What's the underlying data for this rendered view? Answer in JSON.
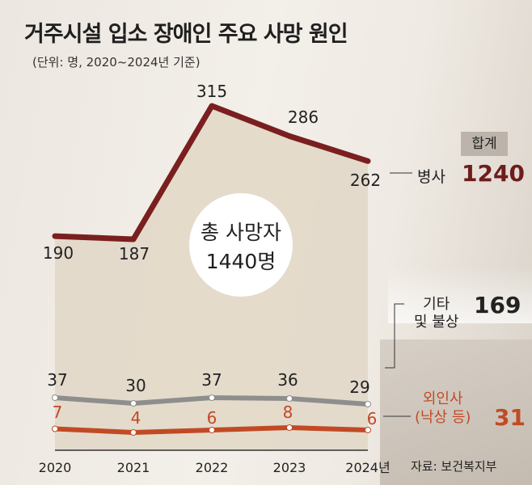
{
  "title": "거주시설 입소 장애인 주요 사망 원인",
  "subtitle": "(단위: 명, 2020~2024년 기준)",
  "center": {
    "line1": "총 사망자",
    "line2": "1440명"
  },
  "totals_badge": "합계",
  "source": "자료: 보건복지부",
  "chart_data": {
    "type": "line",
    "categories": [
      "2020",
      "2021",
      "2022",
      "2023",
      "2024년"
    ],
    "series": [
      {
        "name": "병사",
        "values": [
          190,
          187,
          315,
          286,
          262
        ],
        "color": "#7a1f1f",
        "total": "1240"
      },
      {
        "name": "기타 및 불상",
        "values": [
          37,
          30,
          37,
          36,
          29
        ],
        "color": "#8e8e8e",
        "total": "169"
      },
      {
        "name": "외인사 (낙상 등)",
        "values": [
          7,
          4,
          6,
          8,
          6
        ],
        "color": "#c14a25",
        "total": "31"
      }
    ],
    "value_labels": {
      "disease": [
        "190",
        "187",
        "315",
        "286",
        "262"
      ],
      "other": [
        "37",
        "30",
        "37",
        "36",
        "29"
      ],
      "external": [
        "7",
        "4",
        "6",
        "8",
        "6"
      ]
    },
    "legend_text": {
      "disease": "병사",
      "other_line1": "기타",
      "other_line2": "및 불상",
      "external_line1": "외인사",
      "external_line2": "(낙상 등)"
    }
  }
}
